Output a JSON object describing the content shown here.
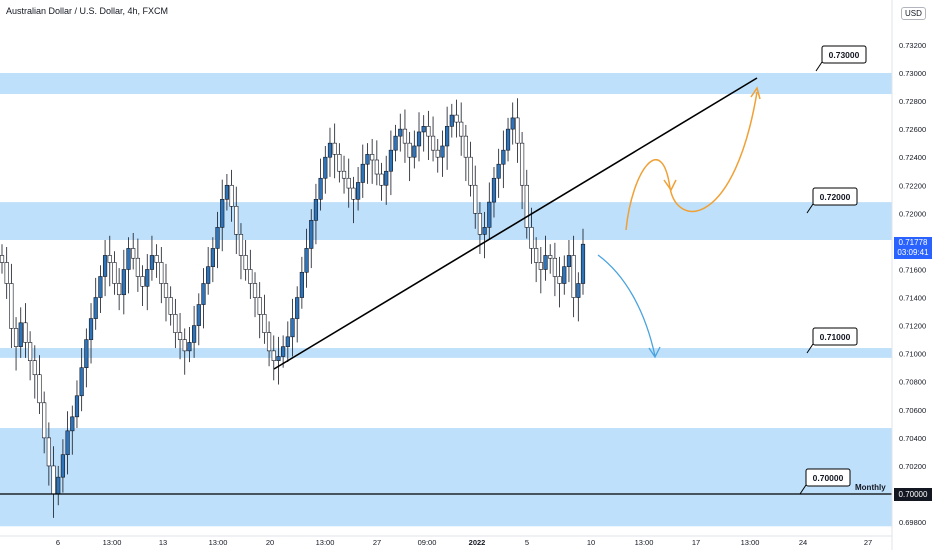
{
  "header": {
    "title": "Australian Dollar / U.S. Dollar, 4h, FXCM",
    "currency": "USD"
  },
  "price_tag": {
    "price": "0.71778",
    "countdown": "03:09:41"
  },
  "monthly_tag": {
    "label": "Monthly",
    "price": "0.70000"
  },
  "colors": {
    "zone": "#bfe0fa",
    "candle": "#2f74b8",
    "price_tag": "#2962ff",
    "orange_arrow": "#f0a035",
    "blue_arrow": "#4aa3df"
  },
  "chart_data": {
    "type": "candlestick",
    "y_axis": {
      "min": 0.6975,
      "max": 0.7355,
      "ticks": [
        "0.73200",
        "0.73000",
        "0.72800",
        "0.72600",
        "0.72400",
        "0.72200",
        "0.72000",
        "0.71800",
        "0.71600",
        "0.71400",
        "0.71200",
        "0.71000",
        "0.70800",
        "0.70600",
        "0.70400",
        "0.70200",
        "0.70000",
        "0.69800"
      ]
    },
    "x_axis": {
      "ticks": [
        "6",
        "13:00",
        "13",
        "13:00",
        "20",
        "13:00",
        "27",
        "09:00",
        "2022",
        "5",
        "10",
        "13:00",
        "17",
        "13:00",
        "24",
        "27"
      ]
    },
    "zones": [
      {
        "from": 0.7285,
        "to": 0.73
      },
      {
        "from": 0.7181,
        "to": 0.7208
      },
      {
        "from": 0.7097,
        "to": 0.7104
      },
      {
        "from": 0.6977,
        "to": 0.7047
      }
    ],
    "levels": [
      {
        "label": "0.73000",
        "value": 0.73
      },
      {
        "label": "0.72000",
        "value": 0.72
      },
      {
        "label": "0.71000",
        "value": 0.71
      },
      {
        "label": "0.70000",
        "value": 0.7
      }
    ],
    "trendline": {
      "from": {
        "x": "20",
        "y": 0.7085
      },
      "to": {
        "y": 0.7296
      }
    },
    "last_price": 0.71778,
    "candles_close": [
      0.7165,
      0.715,
      0.7118,
      0.7105,
      0.7122,
      0.7108,
      0.7095,
      0.7085,
      0.7065,
      0.704,
      0.702,
      0.7,
      0.7012,
      0.7028,
      0.7045,
      0.7055,
      0.707,
      0.709,
      0.711,
      0.7125,
      0.714,
      0.7155,
      0.717,
      0.7165,
      0.715,
      0.7142,
      0.716,
      0.7175,
      0.7168,
      0.7155,
      0.7148,
      0.716,
      0.717,
      0.7165,
      0.715,
      0.714,
      0.7128,
      0.7115,
      0.711,
      0.7102,
      0.7108,
      0.712,
      0.7135,
      0.715,
      0.7162,
      0.7175,
      0.719,
      0.721,
      0.722,
      0.7205,
      0.7185,
      0.717,
      0.716,
      0.715,
      0.714,
      0.7128,
      0.7115,
      0.7102,
      0.7095,
      0.7098,
      0.7105,
      0.7112,
      0.7125,
      0.714,
      0.7158,
      0.7175,
      0.7195,
      0.721,
      0.7225,
      0.724,
      0.725,
      0.7242,
      0.723,
      0.7225,
      0.7218,
      0.721,
      0.7222,
      0.7235,
      0.7242,
      0.7238,
      0.7228,
      0.722,
      0.723,
      0.7245,
      0.7255,
      0.726,
      0.725,
      0.724,
      0.7248,
      0.7258,
      0.7262,
      0.7255,
      0.7245,
      0.724,
      0.7248,
      0.7262,
      0.727,
      0.7265,
      0.7255,
      0.724,
      0.722,
      0.72,
      0.7185,
      0.719,
      0.7208,
      0.7225,
      0.7235,
      0.7245,
      0.726,
      0.7268,
      0.725,
      0.722,
      0.719,
      0.7175,
      0.7165,
      0.716,
      0.717,
      0.7168,
      0.7155,
      0.715,
      0.7162,
      0.717,
      0.714,
      0.715,
      0.7178
    ]
  }
}
